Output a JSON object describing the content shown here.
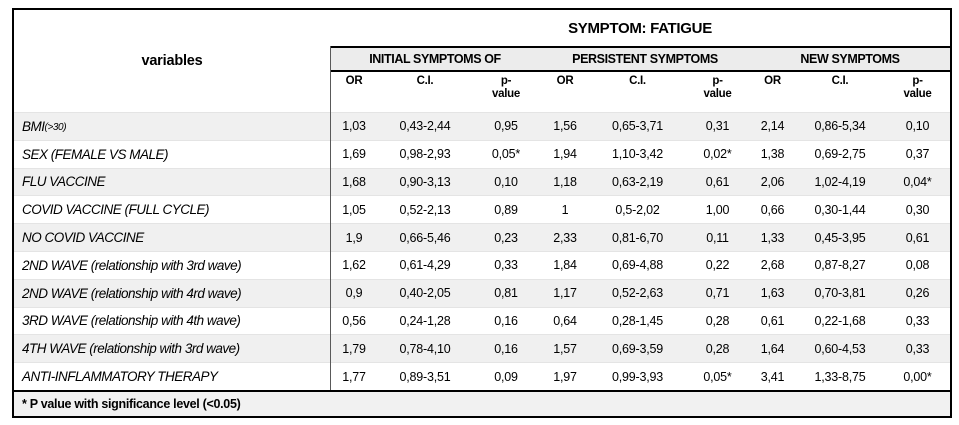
{
  "title": "SYMPTOM: FATIGUE",
  "variables_header": "variables",
  "groups": [
    {
      "label": "INITIAL SYMPTOMS OF"
    },
    {
      "label": "PERSISTENT SYMPTOMS"
    },
    {
      "label": "NEW SYMPTOMS"
    }
  ],
  "subheaders": {
    "or": "OR",
    "ci": "C.I.",
    "p": "p-\nvalue"
  },
  "rows": [
    {
      "variable": "BMI",
      "note": "(>30)",
      "cells": [
        "1,03",
        "0,43-2,44",
        "0,95",
        "1,56",
        "0,65-3,71",
        "0,31",
        "2,14",
        "0,86-5,34",
        "0,10"
      ]
    },
    {
      "variable": "SEX (FEMALE VS MALE)",
      "note": "",
      "cells": [
        "1,69",
        "0,98-2,93",
        "0,05*",
        "1,94",
        "1,10-3,42",
        "0,02*",
        "1,38",
        "0,69-2,75",
        "0,37"
      ]
    },
    {
      "variable": "FLU VACCINE",
      "note": "",
      "cells": [
        "1,68",
        "0,90-3,13",
        "0,10",
        "1,18",
        "0,63-2,19",
        "0,61",
        "2,06",
        "1,02-4,19",
        "0,04*"
      ]
    },
    {
      "variable": "COVID VACCINE (FULL CYCLE)",
      "note": "",
      "cells": [
        "1,05",
        "0,52-2,13",
        "0,89",
        "1",
        "0,5-2,02",
        "1,00",
        "0,66",
        "0,30-1,44",
        "0,30"
      ]
    },
    {
      "variable": "NO COVID VACCINE",
      "note": "",
      "cells": [
        "1,9",
        "0,66-5,46",
        "0,23",
        "2,33",
        "0,81-6,70",
        "0,11",
        "1,33",
        "0,45-3,95",
        "0,61"
      ]
    },
    {
      "variable": "2ND WAVE (relationship with 3rd wave)",
      "note": "",
      "cells": [
        "1,62",
        "0,61-4,29",
        "0,33",
        "1,84",
        "0,69-4,88",
        "0,22",
        "2,68",
        "0,87-8,27",
        "0,08"
      ]
    },
    {
      "variable": "2ND WAVE (relationship with 4rd wave)",
      "note": "",
      "cells": [
        "0,9",
        "0,40-2,05",
        "0,81",
        "1,17",
        "0,52-2,63",
        "0,71",
        "1,63",
        "0,70-3,81",
        "0,26"
      ]
    },
    {
      "variable": "3RD WAVE (relationship with 4th wave)",
      "note": "",
      "cells": [
        "0,56",
        "0,24-1,28",
        "0,16",
        "0,64",
        "0,28-1,45",
        "0,28",
        "0,61",
        "0,22-1,68",
        "0,33"
      ]
    },
    {
      "variable": "4TH WAVE (relationship with 3rd wave)",
      "note": "",
      "cells": [
        "1,79",
        "0,78-4,10",
        "0,16",
        "1,57",
        "0,69-3,59",
        "0,28",
        "1,64",
        "0,60-4,53",
        "0,33"
      ]
    },
    {
      "variable": "ANTI-INFLAMMATORY THERAPY",
      "note": "",
      "cells": [
        "1,77",
        "0,89-3,51",
        "0,09",
        "1,97",
        "0,99-3,93",
        "0,05*",
        "3,41",
        "1,33-8,75",
        "0,00*"
      ]
    }
  ],
  "footnote": "* P value with significance level (<0.05)",
  "colors": {
    "band_bg": "#ececec",
    "stripe_bg": "#f0f0f0",
    "footer_bg": "#f1f1f1",
    "border": "#000000",
    "divider": "#595959"
  }
}
